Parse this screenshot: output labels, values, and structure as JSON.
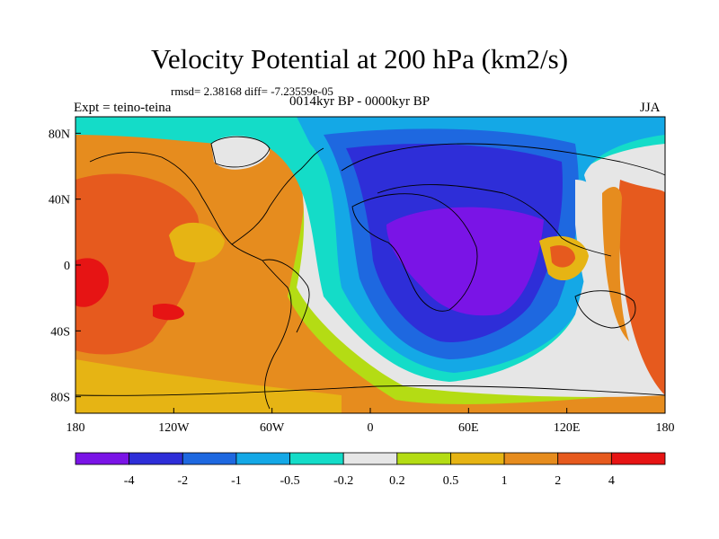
{
  "title": "Velocity Potential at 200 hPa (km2/s)",
  "rmsd_text": "rmsd= 2.38168 diff= -7.23559e-05",
  "left_label": "Expt = teino-teina",
  "center_label": "0014kyr BP - 0000kyr BP",
  "right_label": "JJA",
  "chart_data": {
    "type": "heatmap",
    "title": "Velocity Potential at 200 hPa (km2/s)",
    "x_range": [
      -180,
      180
    ],
    "y_range": [
      -90,
      90
    ],
    "x_ticks": [
      {
        "value": -180,
        "label": "180"
      },
      {
        "value": -120,
        "label": "120W"
      },
      {
        "value": -60,
        "label": "60W"
      },
      {
        "value": 0,
        "label": "0"
      },
      {
        "value": 60,
        "label": "60E"
      },
      {
        "value": 120,
        "label": "120E"
      },
      {
        "value": 180,
        "label": "180"
      }
    ],
    "y_ticks": [
      {
        "value": 80,
        "label": "80N"
      },
      {
        "value": 40,
        "label": "40N"
      },
      {
        "value": 0,
        "label": "0"
      },
      {
        "value": -40,
        "label": "40S"
      },
      {
        "value": -80,
        "label": "80S"
      }
    ],
    "colorbar": {
      "colors": [
        "#7a14e6",
        "#2e2ed8",
        "#1e68e0",
        "#14a8e6",
        "#14dcc8",
        "#e6e6e6",
        "#b4dc14",
        "#e6b414",
        "#e68c1e",
        "#e65a1e",
        "#e61414"
      ],
      "labels": [
        "-4",
        "-2",
        "-1",
        "-0.5",
        "-0.2",
        "0.2",
        "0.5",
        "1",
        "2",
        "4"
      ]
    }
  }
}
